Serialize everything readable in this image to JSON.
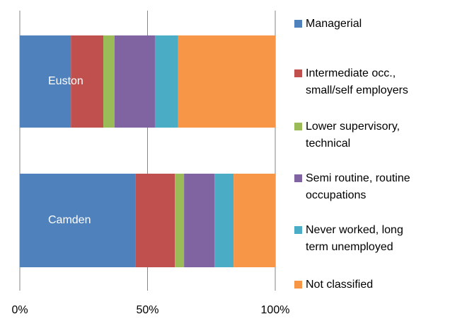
{
  "chart_data": {
    "type": "stacked-bar-horizontal",
    "categories": [
      "Euston",
      "Camden"
    ],
    "series": [
      {
        "name": "Managerial",
        "color": "#4F81BD",
        "values": [
          20,
          45.4
        ]
      },
      {
        "name": "Intermediate occ., small/self employers",
        "color": "#C0504D",
        "values": [
          12.7,
          15.3
        ]
      },
      {
        "name": "Lower supervisory, technical",
        "color": "#9BBB59",
        "values": [
          4.4,
          3.6
        ]
      },
      {
        "name": "Semi routine, routine occupations",
        "color": "#8064A2",
        "values": [
          15.8,
          11.9
        ]
      },
      {
        "name": "Never worked, long term unemployed",
        "color": "#4BACC6",
        "values": [
          9.1,
          7.5
        ]
      },
      {
        "name": "Not classified",
        "color": "#F79646",
        "values": [
          38,
          16.3
        ]
      }
    ],
    "xlim": [
      0,
      100
    ],
    "xticks": [
      {
        "value": 0,
        "label": "0%"
      },
      {
        "value": 50,
        "label": "50%"
      },
      {
        "value": 100,
        "label": "100%"
      }
    ],
    "grid": true,
    "legend": "right"
  }
}
